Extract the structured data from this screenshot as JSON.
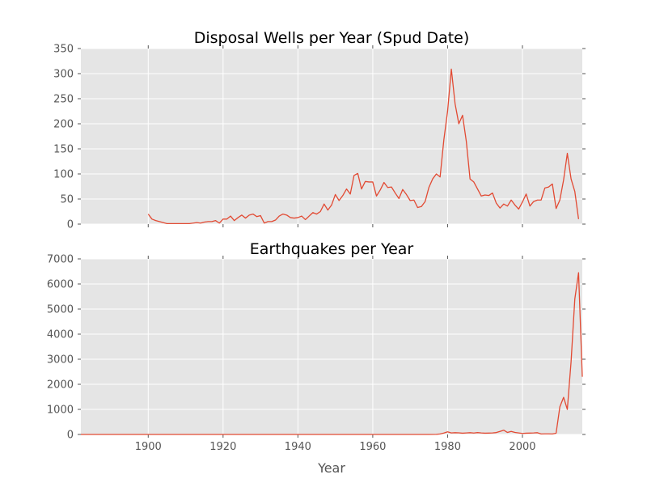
{
  "chart_data": [
    {
      "type": "line",
      "title": "Disposal Wells per Year (Spud Date)",
      "xlabel": "",
      "ylabel": "",
      "xlim": [
        1882,
        2016
      ],
      "ylim": [
        0,
        350
      ],
      "y_ticks": [
        0,
        50,
        100,
        150,
        200,
        250,
        300,
        350
      ],
      "x_ticks": [
        1900,
        1920,
        1940,
        1960,
        1980,
        2000
      ],
      "x_tick_labels_visible": false,
      "grid": true,
      "color": "#E24A33",
      "series": [
        {
          "x": [
            1900,
            1901,
            1902,
            1903,
            1904,
            1905,
            1906,
            1907,
            1908,
            1909,
            1910,
            1911,
            1912,
            1913,
            1914,
            1915,
            1916,
            1917,
            1918,
            1919,
            1920,
            1921,
            1922,
            1923,
            1924,
            1925,
            1926,
            1927,
            1928,
            1929,
            1930,
            1931,
            1932,
            1933,
            1934,
            1935,
            1936,
            1937,
            1938,
            1939,
            1940,
            1941,
            1942,
            1943,
            1944,
            1945,
            1946,
            1947,
            1948,
            1949,
            1950,
            1951,
            1952,
            1953,
            1954,
            1955,
            1956,
            1957,
            1958,
            1959,
            1960,
            1961,
            1962,
            1963,
            1964,
            1965,
            1966,
            1967,
            1968,
            1969,
            1970,
            1971,
            1972,
            1973,
            1974,
            1975,
            1976,
            1977,
            1978,
            1979,
            1980,
            1981,
            1982,
            1983,
            1984,
            1985,
            1986,
            1987,
            1988,
            1989,
            1990,
            1991,
            1992,
            1993,
            1994,
            1995,
            1996,
            1997,
            1998,
            1999,
            2000,
            2001,
            2002,
            2003,
            2004,
            2005,
            2006,
            2007,
            2008,
            2009,
            2010,
            2011,
            2012,
            2013,
            2014,
            2015
          ],
          "y": [
            20,
            10,
            7,
            5,
            3,
            1,
            1,
            1,
            1,
            1,
            1,
            1,
            2,
            3,
            2,
            4,
            5,
            5,
            7,
            2,
            10,
            10,
            16,
            7,
            13,
            18,
            12,
            18,
            20,
            15,
            17,
            2,
            5,
            5,
            8,
            16,
            20,
            18,
            13,
            12,
            13,
            16,
            9,
            16,
            23,
            20,
            25,
            40,
            28,
            38,
            59,
            47,
            57,
            70,
            60,
            97,
            101,
            70,
            85,
            84,
            84,
            56,
            68,
            83,
            73,
            74,
            62,
            51,
            69,
            59,
            47,
            48,
            33,
            35,
            45,
            73,
            90,
            100,
            94,
            168,
            225,
            309,
            240,
            200,
            217,
            165,
            90,
            84,
            70,
            56,
            58,
            57,
            62,
            42,
            32,
            40,
            36,
            48,
            38,
            30,
            44,
            60,
            36,
            45,
            48,
            48,
            72,
            74,
            80,
            31,
            48,
            88,
            141,
            90,
            65,
            10
          ]
        }
      ]
    },
    {
      "type": "line",
      "title": "Earthquakes per Year",
      "xlabel": "Year",
      "ylabel": "",
      "xlim": [
        1882,
        2016
      ],
      "ylim": [
        0,
        7000
      ],
      "y_ticks": [
        0,
        1000,
        2000,
        3000,
        4000,
        5000,
        6000,
        7000
      ],
      "x_ticks": [
        1900,
        1920,
        1940,
        1960,
        1980,
        2000
      ],
      "grid": true,
      "color": "#E24A33",
      "series": [
        {
          "x": [
            1882,
            1900,
            1920,
            1940,
            1950,
            1960,
            1970,
            1975,
            1977,
            1978,
            1979,
            1980,
            1981,
            1982,
            1983,
            1984,
            1985,
            1986,
            1987,
            1988,
            1989,
            1990,
            1991,
            1992,
            1993,
            1994,
            1995,
            1996,
            1997,
            1998,
            1999,
            2000,
            2001,
            2002,
            2003,
            2004,
            2005,
            2006,
            2007,
            2008,
            2009,
            2010,
            2011,
            2012,
            2013,
            2014,
            2015,
            2016
          ],
          "y": [
            0,
            0,
            0,
            0,
            0,
            0,
            0,
            0,
            5,
            20,
            55,
            105,
            60,
            70,
            65,
            50,
            60,
            70,
            55,
            75,
            60,
            50,
            55,
            60,
            75,
            120,
            170,
            80,
            120,
            80,
            60,
            40,
            50,
            55,
            60,
            70,
            20,
            25,
            25,
            20,
            50,
            1100,
            1480,
            1000,
            2900,
            5400,
            6450,
            2300
          ]
        }
      ]
    }
  ]
}
